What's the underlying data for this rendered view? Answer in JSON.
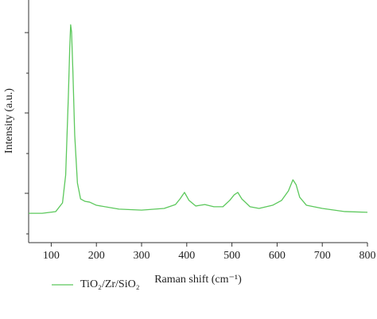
{
  "chart_data": {
    "type": "line",
    "x_label": "Raman shift (cm⁻¹)",
    "y_label": "Intensity (a.u.)",
    "x": [
      50,
      80,
      110,
      125,
      132,
      138,
      141,
      143,
      145,
      148,
      152,
      158,
      165,
      175,
      185,
      200,
      250,
      300,
      350,
      375,
      385,
      395,
      405,
      420,
      440,
      460,
      480,
      495,
      505,
      513,
      522,
      540,
      560,
      590,
      610,
      625,
      635,
      642,
      650,
      665,
      700,
      750,
      800
    ],
    "series": [
      {
        "name": "TiO₂/Zr/SiO₂",
        "color": "#5cc85c",
        "values": [
          12.1,
          12.1,
          12.8,
          16.4,
          27.9,
          60.7,
          80.3,
          89.8,
          86.9,
          70.5,
          44.3,
          24.6,
          18.0,
          17.0,
          16.7,
          15.4,
          13.8,
          13.4,
          14.1,
          15.7,
          18.0,
          20.7,
          17.4,
          15.1,
          15.7,
          14.8,
          14.8,
          17.4,
          19.7,
          20.7,
          18.0,
          14.8,
          14.1,
          15.4,
          17.4,
          21.3,
          25.9,
          23.9,
          18.7,
          15.4,
          14.1,
          12.8,
          12.5
        ]
      }
    ],
    "xlim": [
      50,
      800
    ],
    "xticks": [
      100,
      200,
      300,
      400,
      500,
      600,
      700,
      800
    ],
    "ylim": [
      0,
      100
    ],
    "legend": "bottom-left"
  }
}
